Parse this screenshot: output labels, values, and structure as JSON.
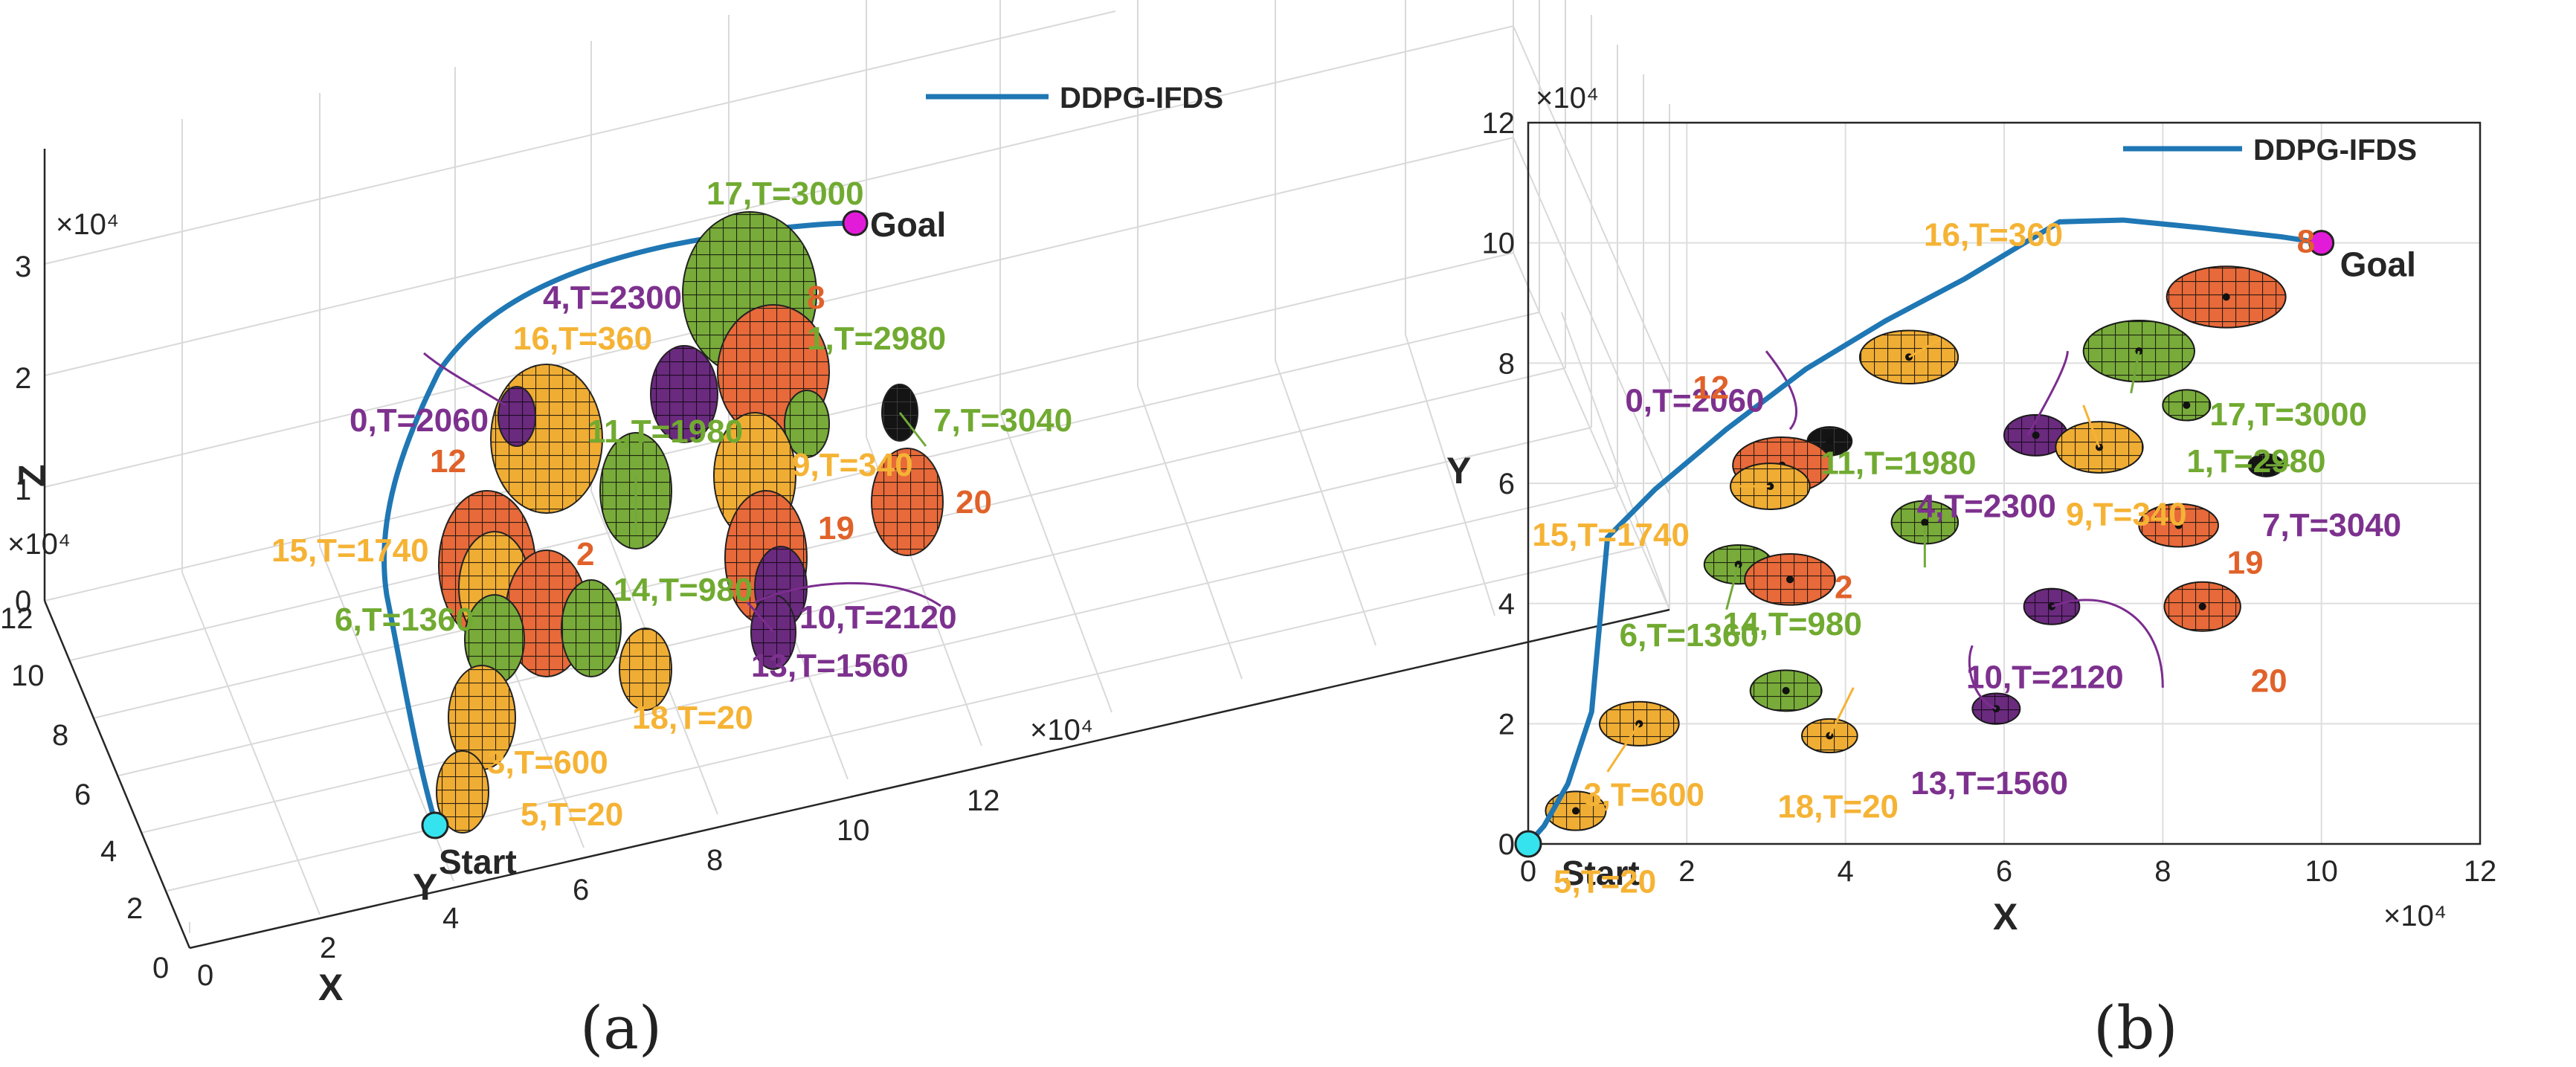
{
  "colors": {
    "path": "#1f77b4",
    "orange": "#e8693a",
    "yellow": "#f5b335",
    "green": "#72a83b",
    "purple": "#7b2d8e",
    "black": "#111111",
    "start": "#35e3ee",
    "goal": "#e21bd9",
    "label_yellow": "#f5b335",
    "label_green": "#71aa31",
    "label_purple": "#7d318e",
    "label_orange": "#e0622a"
  },
  "captions": {
    "a": "(a)",
    "b": "(b)"
  },
  "chart_data": [
    {
      "type": "line",
      "view": "3d",
      "legend": {
        "entry": "DDPG-IFDS",
        "position": "top-right"
      },
      "xlabel": "X",
      "ylabel": "Y",
      "zlabel": "Z",
      "x_exponent": "×10⁴",
      "y_exponent": "×10⁴",
      "z_exponent": "×10⁴",
      "xlim": [
        0,
        12
      ],
      "ylim": [
        0,
        12
      ],
      "zlim": [
        0,
        3
      ],
      "x_ticks": [
        "0",
        "2",
        "4",
        "6",
        "8",
        "10",
        "12"
      ],
      "y_ticks": [
        "0",
        "2",
        "4",
        "6",
        "8",
        "10",
        "12"
      ],
      "z_ticks": [
        "0",
        "1",
        "2",
        "3"
      ],
      "grid": true,
      "start_label": "Start",
      "goal_label": "Goal",
      "path": [
        [
          0,
          0,
          0.2
        ],
        [
          0.5,
          1,
          0.4
        ],
        [
          1,
          3,
          0.6
        ],
        [
          1.3,
          5,
          0.9
        ],
        [
          1.8,
          6.4,
          1.2
        ],
        [
          3,
          7.6,
          1.6
        ],
        [
          4.7,
          8.8,
          2.0
        ],
        [
          6.7,
          10.3,
          2.3
        ],
        [
          8.5,
          10.2,
          2.4
        ],
        [
          10,
          10,
          2.5
        ]
      ],
      "obstacles": [
        {
          "label": "17,T=3000",
          "color": "green"
        },
        {
          "label": "4,T=2300",
          "color": "purple"
        },
        {
          "label": "8",
          "color": "orange"
        },
        {
          "label": "16,T=360",
          "color": "yellow"
        },
        {
          "label": "1,T=2980",
          "color": "green"
        },
        {
          "label": "0,T=2060",
          "color": "purple"
        },
        {
          "label": "11,T=1980",
          "color": "green"
        },
        {
          "label": "7,T=3040",
          "color": "green"
        },
        {
          "label": "12",
          "color": "orange"
        },
        {
          "label": "9,T=340",
          "color": "yellow"
        },
        {
          "label": "20",
          "color": "orange"
        },
        {
          "label": "19",
          "color": "orange"
        },
        {
          "label": "15,T=1740",
          "color": "yellow"
        },
        {
          "label": "2",
          "color": "orange"
        },
        {
          "label": "14,T=980",
          "color": "green"
        },
        {
          "label": "6,T=1360",
          "color": "green"
        },
        {
          "label": "10,T=2120",
          "color": "purple"
        },
        {
          "label": "13,T=1560",
          "color": "purple"
        },
        {
          "label": "18,T=20",
          "color": "yellow"
        },
        {
          "label": "3,T=600",
          "color": "yellow"
        },
        {
          "label": "5,T=20",
          "color": "yellow"
        }
      ]
    },
    {
      "type": "line",
      "view": "top",
      "legend": {
        "entry": "DDPG-IFDS",
        "position": "top-right"
      },
      "xlabel": "X",
      "ylabel": "Y",
      "x_exponent": "×10⁴",
      "y_exponent": "×10⁴",
      "xlim": [
        0,
        12
      ],
      "ylim": [
        0,
        12
      ],
      "x_ticks": [
        "0",
        "2",
        "4",
        "6",
        "8",
        "10",
        "12"
      ],
      "y_ticks": [
        "0",
        "2",
        "4",
        "6",
        "8",
        "10",
        "12"
      ],
      "grid": true,
      "start": [
        0,
        0
      ],
      "goal": [
        10,
        10
      ],
      "start_label": "Start",
      "goal_label": "Goal",
      "path": [
        [
          0,
          0
        ],
        [
          0.2,
          0.3
        ],
        [
          0.5,
          1.0
        ],
        [
          0.8,
          2.2
        ],
        [
          1.0,
          5.1
        ],
        [
          1.6,
          5.9
        ],
        [
          2.5,
          6.9
        ],
        [
          3.5,
          7.9
        ],
        [
          4.5,
          8.7
        ],
        [
          5.5,
          9.4
        ],
        [
          6.7,
          10.35
        ],
        [
          7.5,
          10.38
        ],
        [
          8.5,
          10.25
        ],
        [
          9.5,
          10.1
        ],
        [
          10,
          10
        ]
      ],
      "obstacles": [
        {
          "id": "8",
          "label": "8",
          "x": 8.8,
          "y": 9.1,
          "rx": 0.75,
          "ry": 0.6,
          "color": "orange"
        },
        {
          "id": "16",
          "label": "16,T=360",
          "x": 4.8,
          "y": 8.1,
          "rx": 0.62,
          "ry": 0.52,
          "color": "yellow"
        },
        {
          "id": "17",
          "label": "17,T=3000",
          "x": 7.7,
          "y": 8.2,
          "rx": 0.7,
          "ry": 0.6,
          "color": "green"
        },
        {
          "id": "1",
          "label": "1,T=2980",
          "x": 8.3,
          "y": 7.3,
          "rx": 0.3,
          "ry": 0.3,
          "color": "green"
        },
        {
          "id": "4",
          "label": "4,T=2300",
          "x": 6.4,
          "y": 6.8,
          "rx": 0.4,
          "ry": 0.4,
          "color": "purple"
        },
        {
          "id": "9",
          "label": "9,T=340",
          "x": 7.2,
          "y": 6.6,
          "rx": 0.55,
          "ry": 0.5,
          "color": "yellow"
        },
        {
          "id": "7",
          "label": "7,T=3040",
          "x": 9.3,
          "y": 6.3,
          "rx": 0.22,
          "ry": 0.22,
          "color": "black"
        },
        {
          "id": "0",
          "label": "0,T=2060",
          "x": 3.8,
          "y": 6.7,
          "rx": 0.28,
          "ry": 0.28,
          "color": "black"
        },
        {
          "id": "12",
          "label": "12",
          "x": 3.2,
          "y": 6.3,
          "rx": 0.62,
          "ry": 0.55,
          "color": "orange"
        },
        {
          "id": "15",
          "label": "15,T=1740",
          "x": 3.05,
          "y": 5.95,
          "rx": 0.5,
          "ry": 0.45,
          "color": "yellow"
        },
        {
          "id": "11",
          "label": "11,T=1980",
          "x": 5.0,
          "y": 5.35,
          "rx": 0.42,
          "ry": 0.42,
          "color": "green"
        },
        {
          "id": "19",
          "label": "19",
          "x": 8.2,
          "y": 5.3,
          "rx": 0.5,
          "ry": 0.42,
          "color": "orange"
        },
        {
          "id": "6",
          "label": "6,T=1360",
          "x": 2.65,
          "y": 4.65,
          "rx": 0.43,
          "ry": 0.38,
          "color": "green"
        },
        {
          "id": "2",
          "label": "2",
          "x": 3.3,
          "y": 4.4,
          "rx": 0.57,
          "ry": 0.5,
          "color": "orange"
        },
        {
          "id": "10",
          "label": "10,T=2120",
          "x": 6.6,
          "y": 3.95,
          "rx": 0.35,
          "ry": 0.35,
          "color": "purple"
        },
        {
          "id": "20",
          "label": "20",
          "x": 8.5,
          "y": 3.95,
          "rx": 0.48,
          "ry": 0.48,
          "color": "orange"
        },
        {
          "id": "14",
          "label": "14,T=980",
          "x": 3.25,
          "y": 2.55,
          "rx": 0.45,
          "ry": 0.4,
          "color": "green"
        },
        {
          "id": "18",
          "label": "18,T=20",
          "x": 3.8,
          "y": 1.8,
          "rx": 0.35,
          "ry": 0.33,
          "color": "yellow"
        },
        {
          "id": "13",
          "label": "13,T=1560",
          "x": 5.9,
          "y": 2.25,
          "rx": 0.3,
          "ry": 0.3,
          "color": "purple"
        },
        {
          "id": "3",
          "label": "3,T=600",
          "x": 1.4,
          "y": 2.0,
          "rx": 0.5,
          "ry": 0.43,
          "color": "yellow"
        },
        {
          "id": "5",
          "label": "5,T=20",
          "x": 0.6,
          "y": 0.55,
          "rx": 0.38,
          "ry": 0.38,
          "color": "yellow"
        }
      ]
    }
  ]
}
